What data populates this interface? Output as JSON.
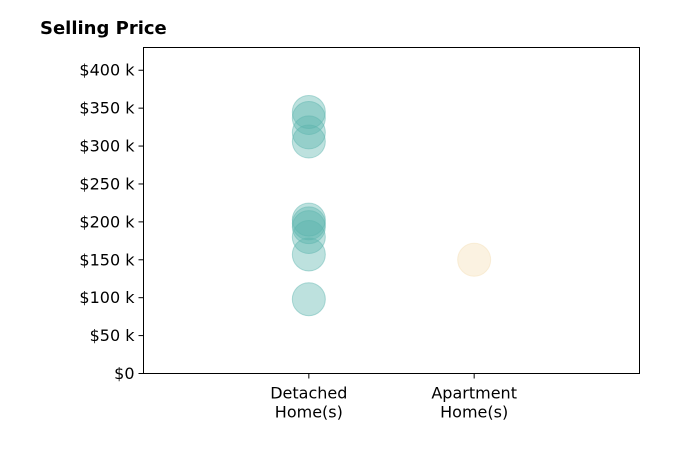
{
  "chart_data": {
    "type": "scatter",
    "title": "Selling Price",
    "xlabel": "",
    "ylabel": "",
    "categories": [
      "Detached\nHome(s)",
      "Apartment\nHome(s)"
    ],
    "xlim": [
      0,
      3
    ],
    "ylim": [
      0,
      430000
    ],
    "yticks": [
      0,
      50000,
      100000,
      150000,
      200000,
      250000,
      300000,
      350000,
      400000
    ],
    "ytick_labels": [
      "$0",
      "$50 k",
      "$100 k",
      "$150 k",
      "$200 k",
      "$250 k",
      "$300 k",
      "$350 k",
      "$400 k"
    ],
    "grid": false,
    "series": [
      {
        "category": "Detached\nHome(s)",
        "x": 1,
        "color": "#5ab4ac",
        "values": [
          98000,
          157000,
          180000,
          193000,
          198000,
          203000,
          306000,
          318000,
          337000,
          345000
        ]
      },
      {
        "category": "Apartment\nHome(s)",
        "x": 2,
        "color": "#f5deb3",
        "values": [
          150000
        ]
      }
    ]
  }
}
